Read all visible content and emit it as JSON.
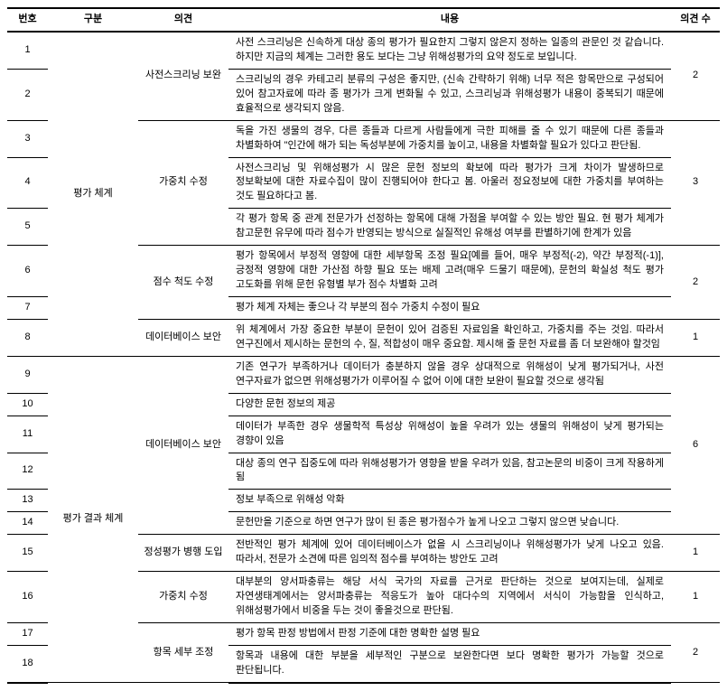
{
  "header": {
    "num": "번호",
    "category": "구분",
    "opinion": "의견",
    "content": "내용",
    "count": "의견 수"
  },
  "rows": [
    {
      "num": "1",
      "content": "사전 스크리닝은 신속하게 대상 종의 평가가 필요한지 그렇지 않은지 정하는 일종의 관문인 것 같습니다. 하지만 지금의 체계는 그러한 용도 보다는 그냥 위해성평가의 요약 정도로 보입니다."
    },
    {
      "num": "2",
      "content": "스크리닝의 경우 카테고리 분류의 구성은 좋지만, (신속 간략하기 위해) 너무 적은 항목만으로 구성되어 있어 참고자료에 따라 종 평가가 크게 변화될 수 있고, 스크리닝과 위해성평가 내용이 중복되기 때문에 효율적으로 생각되지 않음."
    },
    {
      "num": "3",
      "content": "독을 가진 생물의 경우, 다른 종들과 다르게 사람들에게 극한 피해를 줄 수 있기 때문에 다른 종들과 차별화하여 \"인간에 해가 되는 독성부분에 가중치를 높이고, 내용을 차별화할 필요가 있다고 판단됨."
    },
    {
      "num": "4",
      "content": "사전스크리닝 및 위해성평가 시 많은 문헌 정보의 확보에 따라 평가가 크게 차이가 발생하므로 정보확보에 대한 자료수집이 많이 진행되어야 한다고 봄. 아울러 정요정보에 대한 가중치를 부여하는 것도 필요하다고 봄."
    },
    {
      "num": "5",
      "content": "각 평가 항목 중 관계 전문가가 선정하는 항목에 대해 가점을 부여할 수 있는 방안 필요. 현 평가 체계가 참고문헌 유무에 따라 점수가 반영되는 방식으로 실질적인 유해성 여부를 판별하기에 한계가 있음"
    },
    {
      "num": "6",
      "content": "평가 항목에서 부정적 영향에 대한 세부항목 조정 필요[예를 들어, 매우 부정적(-2), 약간 부정적(-1)], 긍정적 영향에 대한 가산점 하향 필요 또는 배제 고려(매우 드물기 때문에), 문헌의 확실성 척도 평가 고도화를 위해 문헌 유형별 부가 점수 차별화 고려"
    },
    {
      "num": "7",
      "content": "평가 체계 자체는 좋으나 각 부분의 점수 가중치 수정이 필요"
    },
    {
      "num": "8",
      "content": "위 체계에서 가장 중요한 부분이 문헌이 있어 검증된 자료임을 확인하고, 가중치를 주는 것임. 따라서 연구진에서 제시하는 문헌의 수, 질, 적합성이 매우 중요함. 제시해 줄 문헌 자료를 좀 더 보완해야 할것임"
    },
    {
      "num": "9",
      "content": "기존 연구가 부족하거나 데이터가 충분하지 않을 경우 상대적으로 위해성이 낮게 평가되거나, 사전 연구자료가 없으면 위해성평가가 이루어질 수 없어 이에 대한 보완이 필요할 것으로 생각됨"
    },
    {
      "num": "10",
      "content": "다양한 문헌 정보의 제공"
    },
    {
      "num": "11",
      "content": "데이터가 부족한 경우 생물학적 특성상 위해성이 높을 우려가 있는 생물의 위해성이 낮게 평가되는 경향이 있음"
    },
    {
      "num": "12",
      "content": "대상 종의 연구 집중도에 따라 위해성평가가 영향을 받을 우려가 있음, 참고논문의 비중이 크게 작용하게 됨"
    },
    {
      "num": "13",
      "content": "정보 부족으로 위해성 악화"
    },
    {
      "num": "14",
      "content": "문헌만을 기준으로 하면 연구가 많이 된 종은 평가점수가 높게 나오고 그렇지 않으면 낮습니다."
    },
    {
      "num": "15",
      "content": "전반적인 평가 체계에 있어 데이터베이스가 없을 시 스크리닝이나 위해성평가가 낮게 나오고 있음. 따라서, 전문가 소견에 따른 임의적 점수를 부여하는 방안도 고려"
    },
    {
      "num": "16",
      "content": "대부분의 양서파충류는 해당 서식 국가의 자료를 근거로 판단하는 것으로 보여지는데, 실제로 자연생태계에서는 양서파충류는 적응도가 높아 대다수의 지역에서 서식이 가능함을 인식하고, 위해성평가에서 비중을 두는 것이 좋을것으로 판단됨."
    },
    {
      "num": "17",
      "content": "평가 항목 판정 방법에서 판정 기준에 대한 명확한 설명 필요"
    },
    {
      "num": "18",
      "content": "항목과 내용에 대한 부분을 세부적인 구분으로 보완한다면 보다 명확한 평가가 가능할 것으로 판단됩니다."
    }
  ],
  "categories": {
    "cat1": "평가 체계",
    "cat2": "평가 결과 체계"
  },
  "opinions": {
    "op1": "사전스크리닝 보완",
    "op2": "가중치 수정",
    "op3": "점수 척도 수정",
    "op4": "데이터베이스 보안",
    "op5": "데이터베이스 보안",
    "op6": "정성평가 병행 도입",
    "op7": "가중치 수정",
    "op8": "항목 세부 조정"
  },
  "counts": {
    "c1": "2",
    "c2": "3",
    "c3": "2",
    "c4": "1",
    "c5": "6",
    "c6": "1",
    "c7": "1",
    "c8": "2"
  }
}
